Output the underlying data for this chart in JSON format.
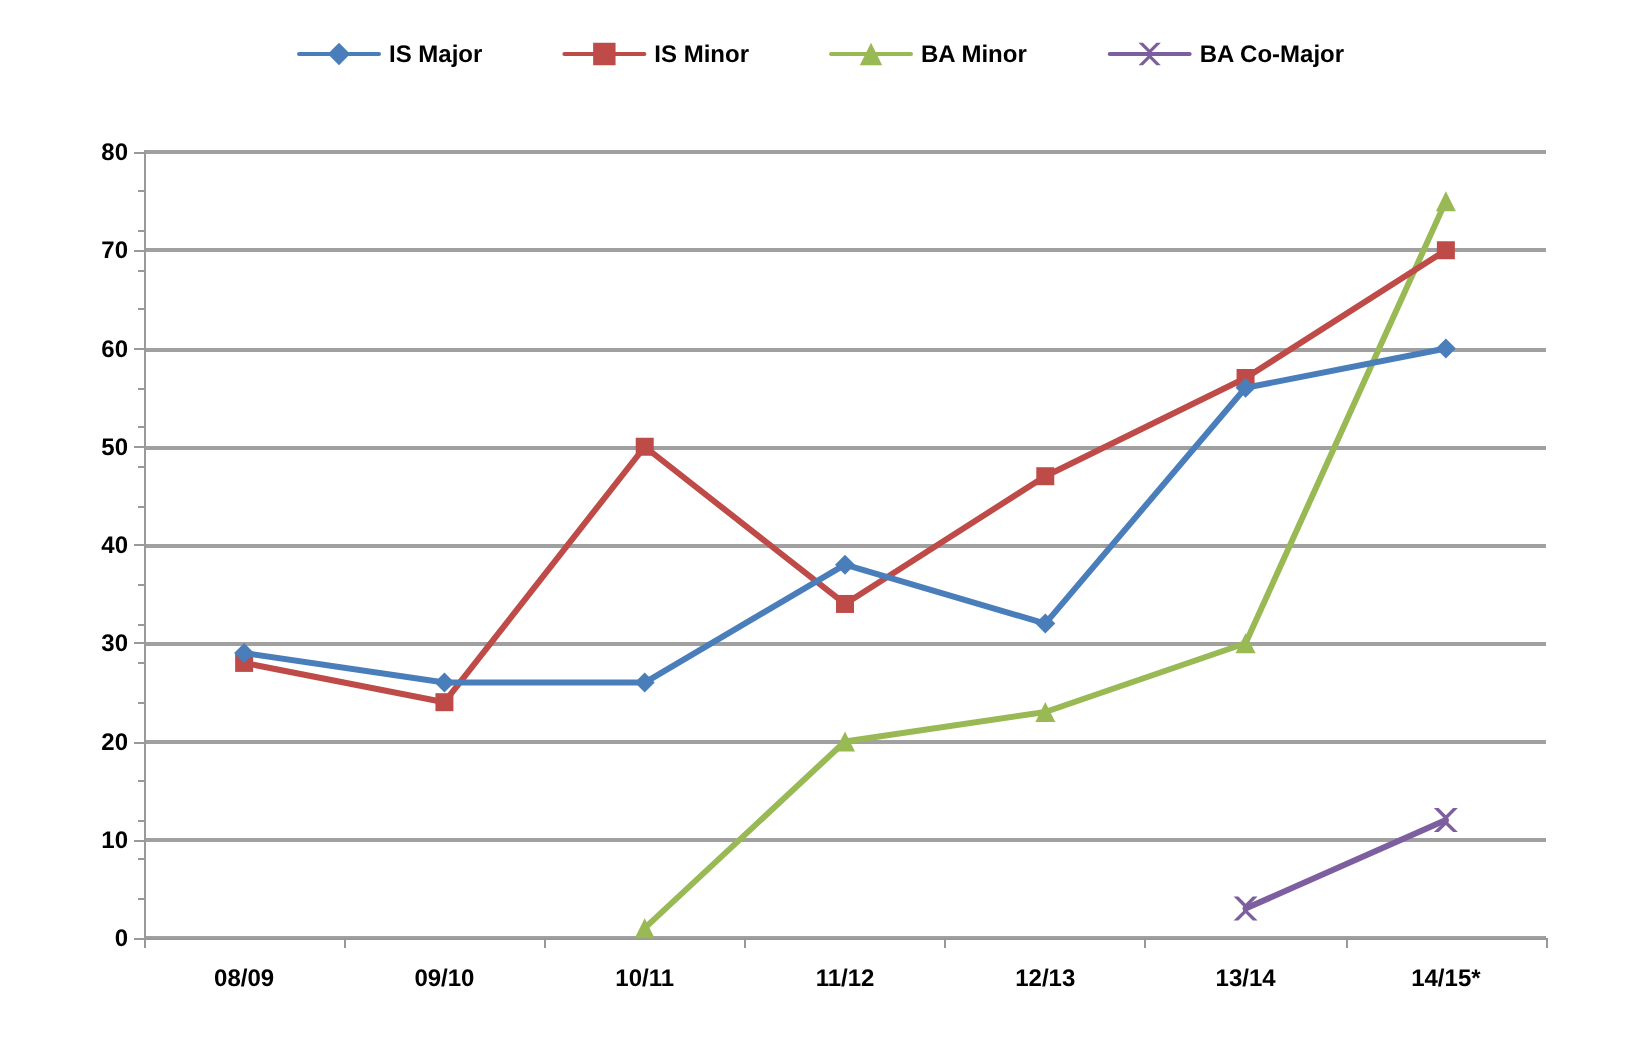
{
  "chart_data": {
    "type": "line",
    "categories": [
      "08/09",
      "09/10",
      "10/11",
      "11/12",
      "12/13",
      "13/14",
      "14/15*"
    ],
    "series": [
      {
        "name": "IS Major",
        "color": "#4a7ebb",
        "marker": "diamond",
        "values": [
          29,
          26,
          26,
          38,
          32,
          56,
          60
        ]
      },
      {
        "name": "IS Minor",
        "color": "#be4b48",
        "marker": "square",
        "values": [
          28,
          24,
          50,
          34,
          47,
          57,
          70
        ]
      },
      {
        "name": "BA Minor",
        "color": "#98b954",
        "marker": "triangle",
        "values": [
          null,
          null,
          1,
          20,
          23,
          30,
          75
        ]
      },
      {
        "name": "BA Co-Major",
        "color": "#7d5fa0",
        "marker": "cross",
        "values": [
          null,
          null,
          null,
          null,
          null,
          3,
          12
        ]
      }
    ],
    "ylim": [
      0,
      80
    ],
    "yticks": [
      0,
      10,
      20,
      30,
      40,
      50,
      60,
      70,
      80
    ],
    "grid": "y",
    "legend": "top",
    "line_style": "solid"
  }
}
